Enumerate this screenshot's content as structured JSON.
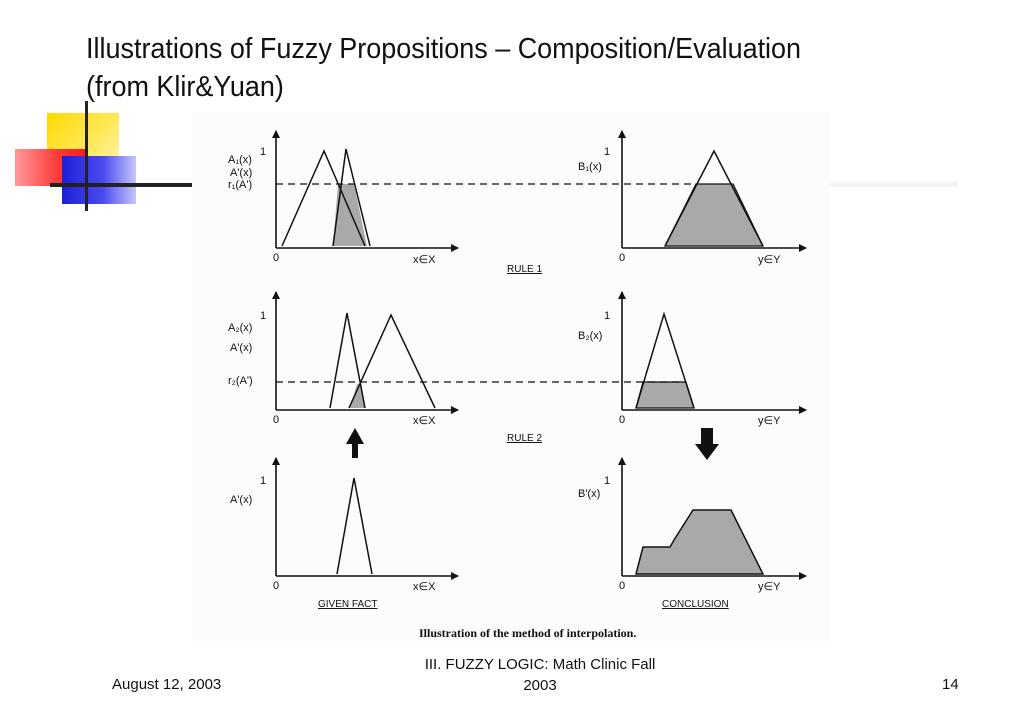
{
  "slide": {
    "title_line1": "Illustrations of Fuzzy Propositions – Composition/Evaluation",
    "title_line2": "(from Klir&Yuan)"
  },
  "figure": {
    "caption": "Illustration of the method of interpolation.",
    "rows": [
      {
        "left": {
          "top_label": "1",
          "y_labels": [
            "A₁(x)",
            "A'(x)",
            "r₁(A')"
          ],
          "origin": "0",
          "x_axis": "x∈X"
        },
        "right": {
          "top_label": "1",
          "y_labels": [
            "B₁(x)"
          ],
          "origin": "0",
          "x_axis": "y∈Y"
        },
        "label": "RULE 1"
      },
      {
        "left": {
          "top_label": "1",
          "y_labels": [
            "A₂(x)",
            "A'(x)",
            "r₂(A')"
          ],
          "origin": "0",
          "x_axis": "x∈X"
        },
        "right": {
          "top_label": "1",
          "y_labels": [
            "B₂(x)"
          ],
          "origin": "0",
          "x_axis": "y∈Y"
        },
        "label": "RULE 2"
      },
      {
        "left": {
          "top_label": "1",
          "y_labels": [
            "A'(x)"
          ],
          "origin": "0",
          "x_axis": "x∈X",
          "label": "GIVEN FACT"
        },
        "right": {
          "top_label": "1",
          "y_labels": [
            "B'(x)"
          ],
          "origin": "0",
          "x_axis": "y∈Y",
          "label": "CONCLUSION"
        }
      }
    ]
  },
  "footer": {
    "date": "August 12, 2003",
    "center_line1": "III. FUZZY LOGIC: Math Clinic Fall",
    "center_line2": "2003",
    "page": "14"
  },
  "colors": {
    "shade": "#a9a9a9",
    "ink": "#111111",
    "deco_yellow": "#ffd900",
    "deco_red": "#ff2a2a",
    "deco_blue": "#2b2be0"
  }
}
